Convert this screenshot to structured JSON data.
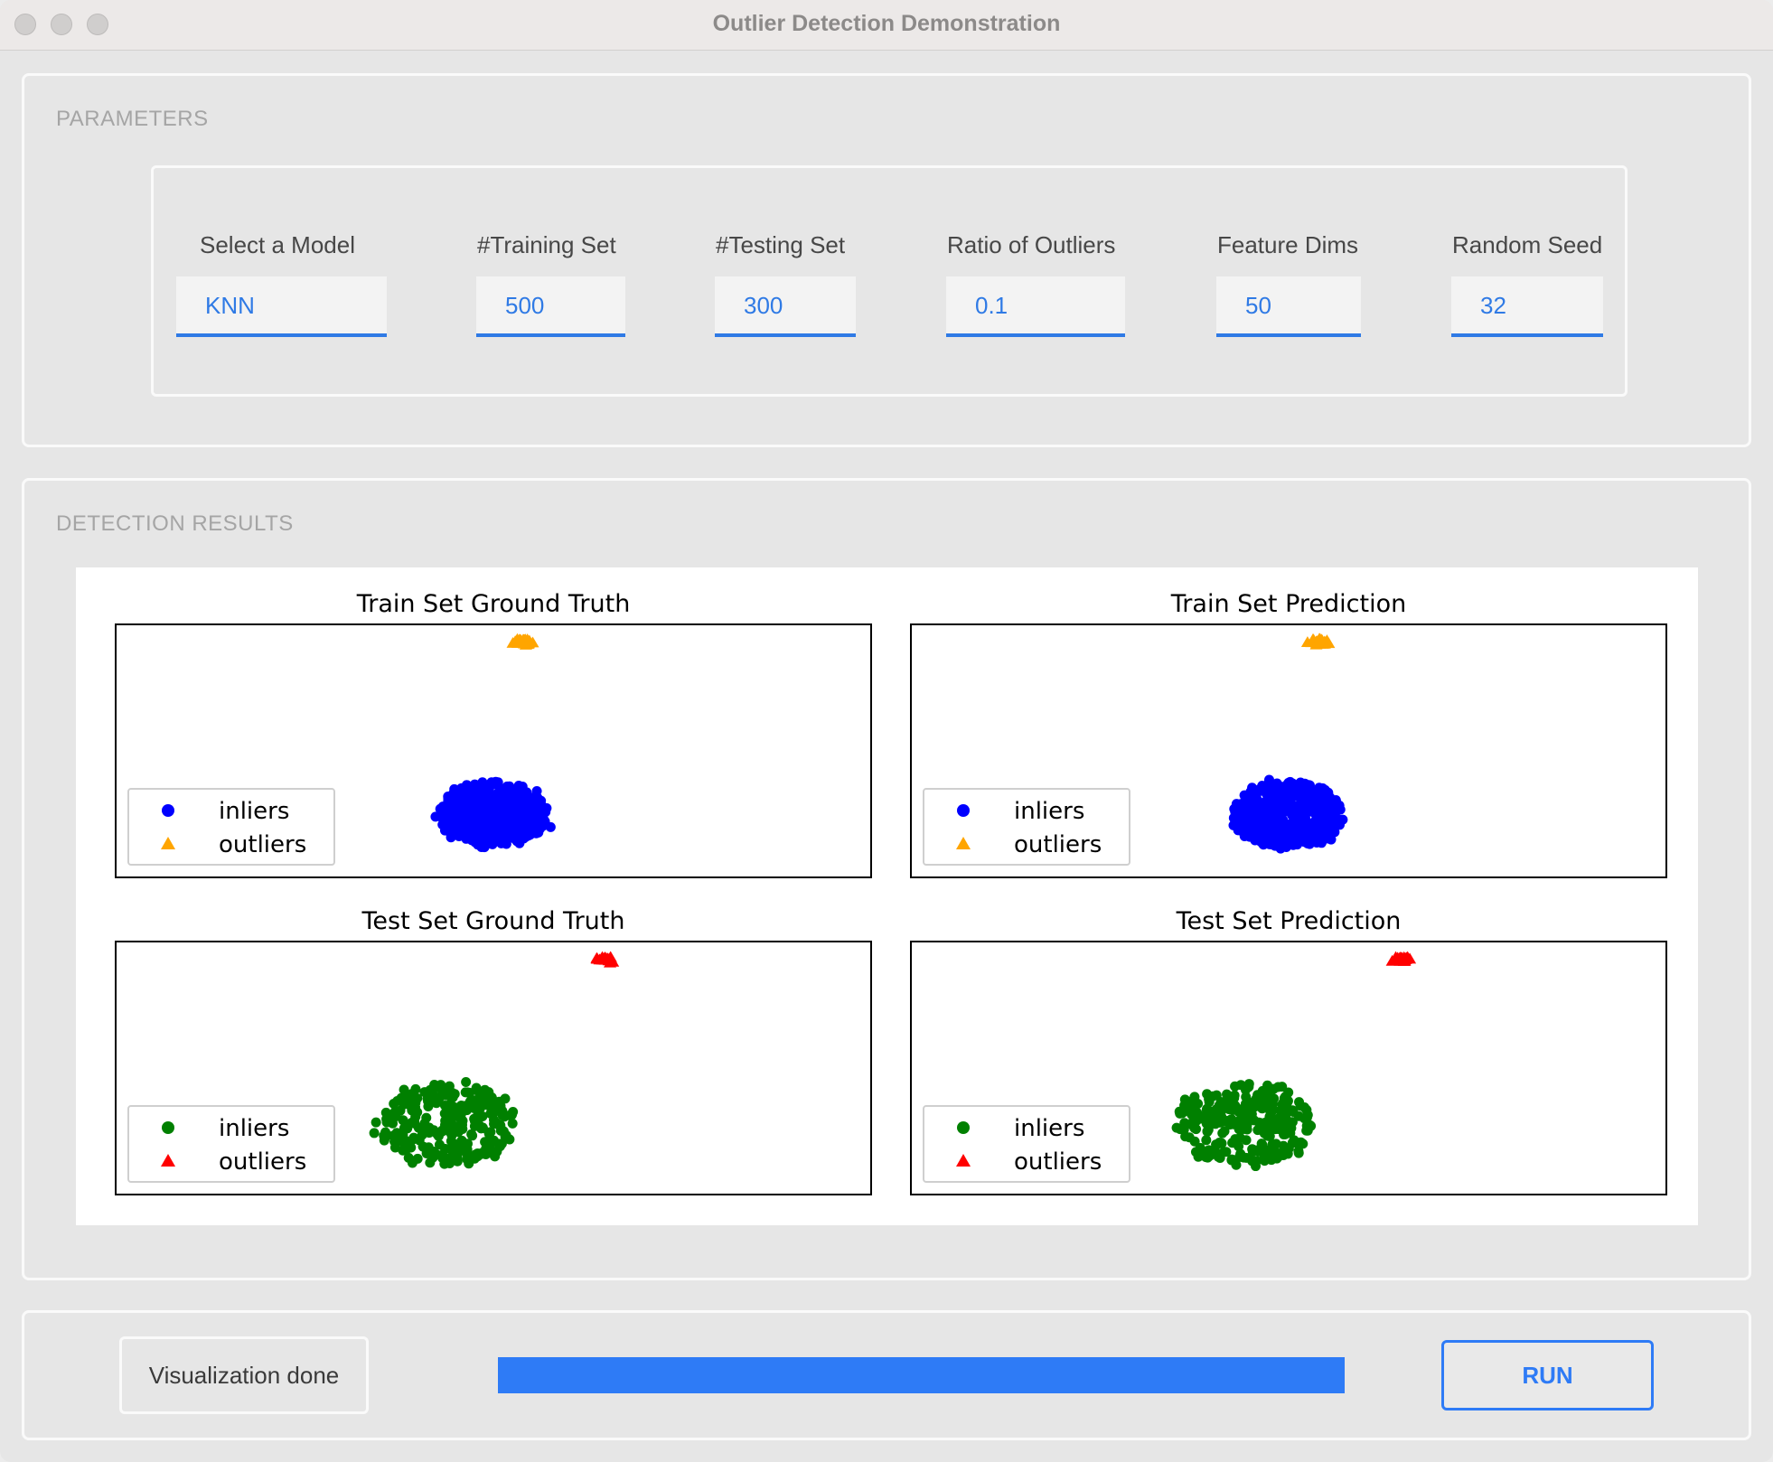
{
  "window": {
    "title": "Outlier Detection Demonstration"
  },
  "parameters": {
    "section_title": "PARAMETERS",
    "fields": [
      {
        "label": "Select a Model",
        "value": "KNN"
      },
      {
        "label": "#Training Set",
        "value": "500"
      },
      {
        "label": "#Testing Set",
        "value": "300"
      },
      {
        "label": "Ratio of Outliers",
        "value": "0.1"
      },
      {
        "label": "Feature Dims",
        "value": "50"
      },
      {
        "label": "Random Seed",
        "value": "32"
      }
    ]
  },
  "results": {
    "section_title": "DETECTION RESULTS"
  },
  "chart_data": [
    {
      "type": "scatter",
      "title": "Train Set Ground Truth",
      "series": [
        {
          "name": "inliers",
          "marker": "circle",
          "color": "#0000ff",
          "center": [
            0.5,
            0.25
          ],
          "spread": 0.08,
          "count": 450
        },
        {
          "name": "outliers",
          "marker": "triangle",
          "color": "#ffa500",
          "center": [
            0.54,
            0.93
          ],
          "spread": 0.01,
          "count": 50
        }
      ],
      "legend": "lower-left",
      "axes_ticks": false
    },
    {
      "type": "scatter",
      "title": "Train Set Prediction",
      "series": [
        {
          "name": "inliers",
          "marker": "circle",
          "color": "#0000ff",
          "center": [
            0.5,
            0.25
          ],
          "spread": 0.08,
          "count": 450
        },
        {
          "name": "outliers",
          "marker": "triangle",
          "color": "#ffa500",
          "center": [
            0.54,
            0.93
          ],
          "spread": 0.01,
          "count": 50
        }
      ],
      "legend": "lower-left",
      "axes_ticks": false
    },
    {
      "type": "scatter",
      "title": "Test Set Ground Truth",
      "series": [
        {
          "name": "inliers",
          "marker": "circle",
          "color": "#008000",
          "center": [
            0.44,
            0.28
          ],
          "spread": 0.1,
          "count": 270
        },
        {
          "name": "outliers",
          "marker": "triangle",
          "color": "#ff0000",
          "center": [
            0.65,
            0.93
          ],
          "spread": 0.01,
          "count": 30
        }
      ],
      "legend": "lower-left",
      "axes_ticks": false
    },
    {
      "type": "scatter",
      "title": "Test Set Prediction",
      "series": [
        {
          "name": "inliers",
          "marker": "circle",
          "color": "#008000",
          "center": [
            0.44,
            0.28
          ],
          "spread": 0.1,
          "count": 270
        },
        {
          "name": "outliers",
          "marker": "triangle",
          "color": "#ff0000",
          "center": [
            0.65,
            0.93
          ],
          "spread": 0.01,
          "count": 30
        }
      ],
      "legend": "lower-left",
      "axes_ticks": false
    }
  ],
  "footer": {
    "status_text": "Visualization done",
    "progress_percent": 100,
    "run_label": "RUN"
  }
}
